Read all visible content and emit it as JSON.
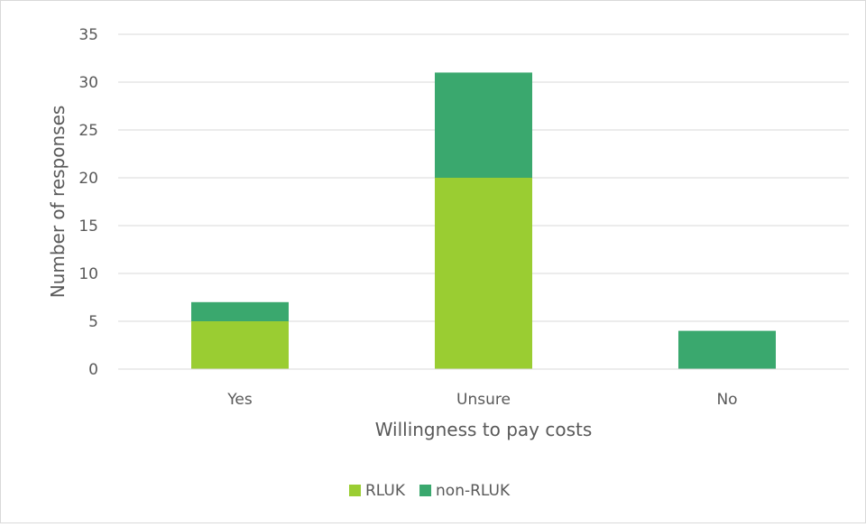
{
  "chart_data": {
    "type": "bar",
    "stacked": true,
    "title": "",
    "xlabel": "Willingness to pay costs",
    "ylabel": "Number of responses",
    "categories": [
      "Yes",
      "Unsure",
      "No"
    ],
    "series": [
      {
        "name": "RLUK",
        "values": [
          5,
          20,
          0
        ],
        "color": "#9acd32"
      },
      {
        "name": "non-RLUK",
        "values": [
          2,
          11,
          4
        ],
        "color": "#3aa86e"
      }
    ],
    "ylim": [
      0,
      35
    ],
    "yticks": [
      0,
      5,
      10,
      15,
      20,
      25,
      30,
      35
    ],
    "grid": true,
    "legend_position": "bottom"
  }
}
